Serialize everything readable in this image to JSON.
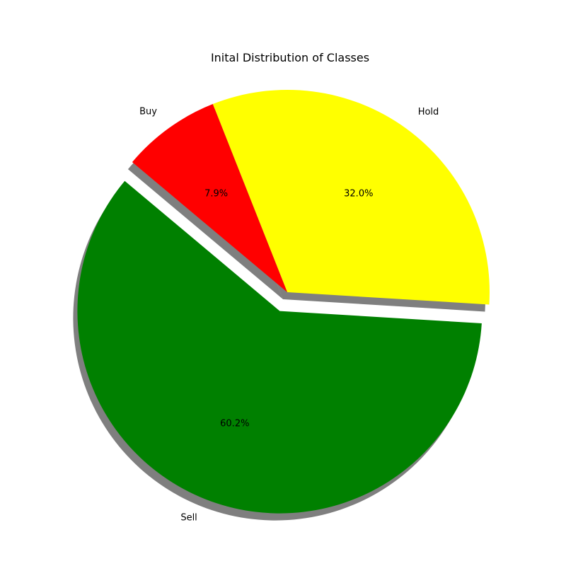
{
  "chart_data": {
    "type": "pie",
    "title": "Inital Distribution of Classes",
    "categories": [
      "Sell",
      "Hold",
      "Buy"
    ],
    "values": [
      60.2,
      32.0,
      7.9
    ],
    "value_labels": [
      "60.2%",
      "32.0%",
      "7.9%"
    ],
    "colors": [
      "#008000",
      "#ffff00",
      "#ff0000"
    ],
    "exploded": [
      "Sell"
    ],
    "shadow": true,
    "grid": false,
    "legend": "none"
  }
}
